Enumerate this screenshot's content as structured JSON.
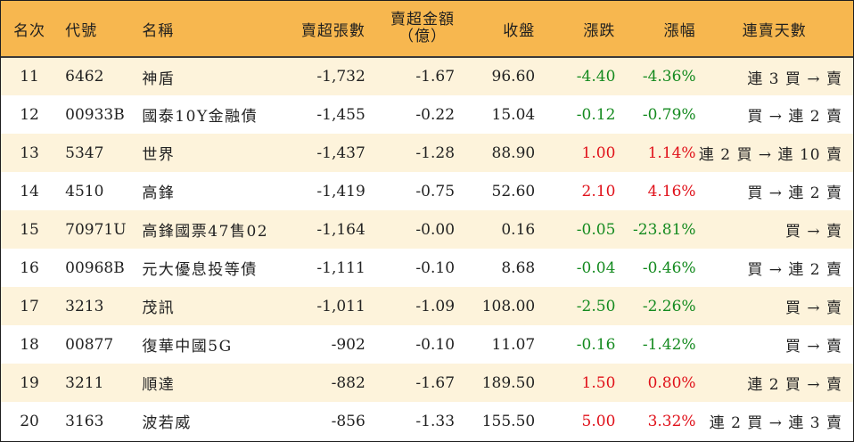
{
  "colors": {
    "header_bg": "#f7b74f",
    "row_stripe": "#fdf3db",
    "row_plain": "#ffffff",
    "up": "#e0111a",
    "down": "#148a1f",
    "border": "#1e1e1e"
  },
  "headers": {
    "rank": "名次",
    "code": "代號",
    "name": "名稱",
    "sell_volume": "賣超張數",
    "sell_amount_line1": "賣超金額",
    "sell_amount_line2": "（億）",
    "close": "收盤",
    "change": "漲跌",
    "change_pct": "漲幅",
    "streak": "連賣天數"
  },
  "rows": [
    {
      "rank": "11",
      "code": "6462",
      "name": "神盾",
      "sell_volume": "-1,732",
      "sell_amount": "-1.67",
      "close": "96.60",
      "change": "-4.40",
      "change_pct": "-4.36%",
      "direction": "down",
      "streak": "連 3 買 → 賣"
    },
    {
      "rank": "12",
      "code": "00933B",
      "name": "國泰10Y金融債",
      "sell_volume": "-1,455",
      "sell_amount": "-0.22",
      "close": "15.04",
      "change": "-0.12",
      "change_pct": "-0.79%",
      "direction": "down",
      "streak": "買 → 連 2 賣"
    },
    {
      "rank": "13",
      "code": "5347",
      "name": "世界",
      "sell_volume": "-1,437",
      "sell_amount": "-1.28",
      "close": "88.90",
      "change": "1.00",
      "change_pct": "1.14%",
      "direction": "up",
      "streak": "連 2 買 → 連 10 賣"
    },
    {
      "rank": "14",
      "code": "4510",
      "name": "高鋒",
      "sell_volume": "-1,419",
      "sell_amount": "-0.75",
      "close": "52.60",
      "change": "2.10",
      "change_pct": "4.16%",
      "direction": "up",
      "streak": "買 → 連 2 賣"
    },
    {
      "rank": "15",
      "code": "70971U",
      "name": "高鋒國票47售02",
      "sell_volume": "-1,164",
      "sell_amount": "-0.00",
      "close": "0.16",
      "change": "-0.05",
      "change_pct": "-23.81%",
      "direction": "down",
      "streak": "買 → 賣"
    },
    {
      "rank": "16",
      "code": "00968B",
      "name": "元大優息投等債",
      "sell_volume": "-1,111",
      "sell_amount": "-0.10",
      "close": "8.68",
      "change": "-0.04",
      "change_pct": "-0.46%",
      "direction": "down",
      "streak": "買 → 連 2 賣"
    },
    {
      "rank": "17",
      "code": "3213",
      "name": "茂訊",
      "sell_volume": "-1,011",
      "sell_amount": "-1.09",
      "close": "108.00",
      "change": "-2.50",
      "change_pct": "-2.26%",
      "direction": "down",
      "streak": "買 → 賣"
    },
    {
      "rank": "18",
      "code": "00877",
      "name": "復華中國5G",
      "sell_volume": "-902",
      "sell_amount": "-0.10",
      "close": "11.07",
      "change": "-0.16",
      "change_pct": "-1.42%",
      "direction": "down",
      "streak": "買 → 賣"
    },
    {
      "rank": "19",
      "code": "3211",
      "name": "順達",
      "sell_volume": "-882",
      "sell_amount": "-1.67",
      "close": "189.50",
      "change": "1.50",
      "change_pct": "0.80%",
      "direction": "up",
      "streak": "連 2 買 → 賣"
    },
    {
      "rank": "20",
      "code": "3163",
      "name": "波若威",
      "sell_volume": "-856",
      "sell_amount": "-1.33",
      "close": "155.50",
      "change": "5.00",
      "change_pct": "3.32%",
      "direction": "up",
      "streak": "連 2 買 → 連 3 賣"
    }
  ]
}
